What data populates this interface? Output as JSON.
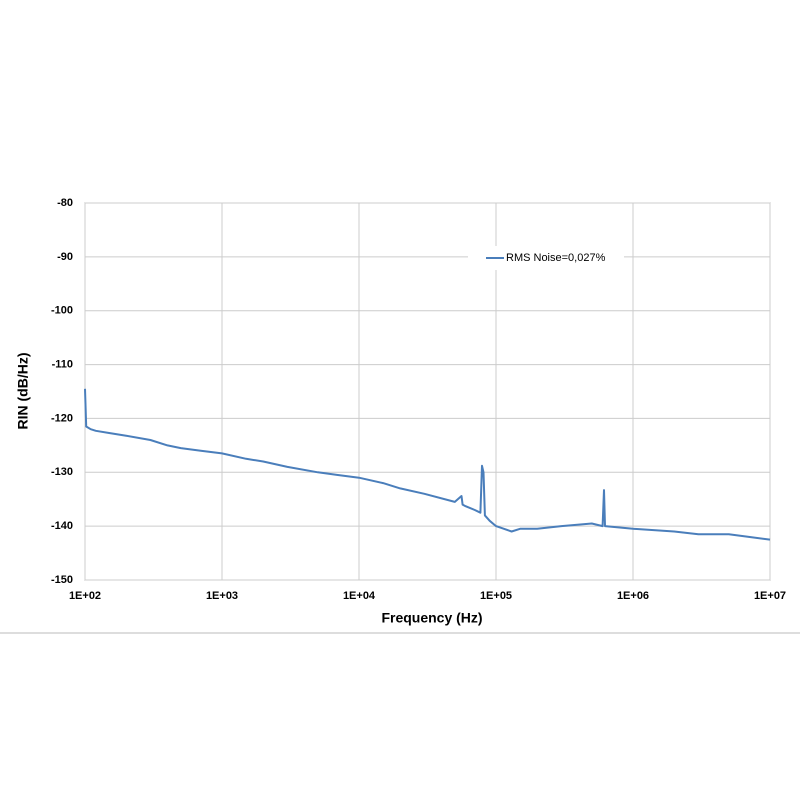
{
  "chart_data": {
    "type": "line",
    "log_x": true,
    "grid": true,
    "legend": "top-right",
    "xlabel": "Frequency (Hz)",
    "ylabel": "RIN (dB/Hz)",
    "xlim": [
      100,
      10000000
    ],
    "ylim": [
      -150,
      -80
    ],
    "xticks": [
      {
        "value": 100,
        "label": "1E+02"
      },
      {
        "value": 1000,
        "label": "1E+03"
      },
      {
        "value": 10000,
        "label": "1E+04"
      },
      {
        "value": 100000,
        "label": "1E+05"
      },
      {
        "value": 1000000,
        "label": "1E+06"
      },
      {
        "value": 10000000,
        "label": "1E+07"
      }
    ],
    "yticks": [
      -150,
      -140,
      -130,
      -120,
      -110,
      -100,
      -90,
      -80
    ],
    "x": [
      100,
      102,
      110,
      120,
      150,
      200,
      300,
      400,
      500,
      700,
      1000,
      1500,
      2000,
      3000,
      5000,
      7000,
      10000,
      15000,
      20000,
      30000,
      50000,
      56000,
      57000,
      60000,
      70000,
      77000,
      79000,
      81000,
      83000,
      90000,
      100000,
      130000,
      150000,
      200000,
      300000,
      500000,
      600000,
      614000,
      625000,
      1000000,
      2000000,
      3000000,
      5000000,
      7000000,
      10000000
    ],
    "series": [
      {
        "name": "RMS Noise=0,027%",
        "color": "#4a7ebb",
        "values": [
          -114.5,
          -121.5,
          -122,
          -122.3,
          -122.7,
          -123.2,
          -124,
          -125,
          -125.5,
          -126,
          -126.5,
          -127.5,
          -128,
          -129,
          -130,
          -130.5,
          -131,
          -132,
          -133,
          -134,
          -135.5,
          -134.4,
          -136,
          -136.3,
          -137,
          -137.5,
          -128.8,
          -130,
          -138,
          -139,
          -140,
          -141,
          -140.5,
          -140.5,
          -140,
          -139.5,
          -140,
          -133.3,
          -140,
          -140.5,
          -141,
          -141.5,
          -141.5,
          -142,
          -142.5
        ]
      }
    ]
  }
}
